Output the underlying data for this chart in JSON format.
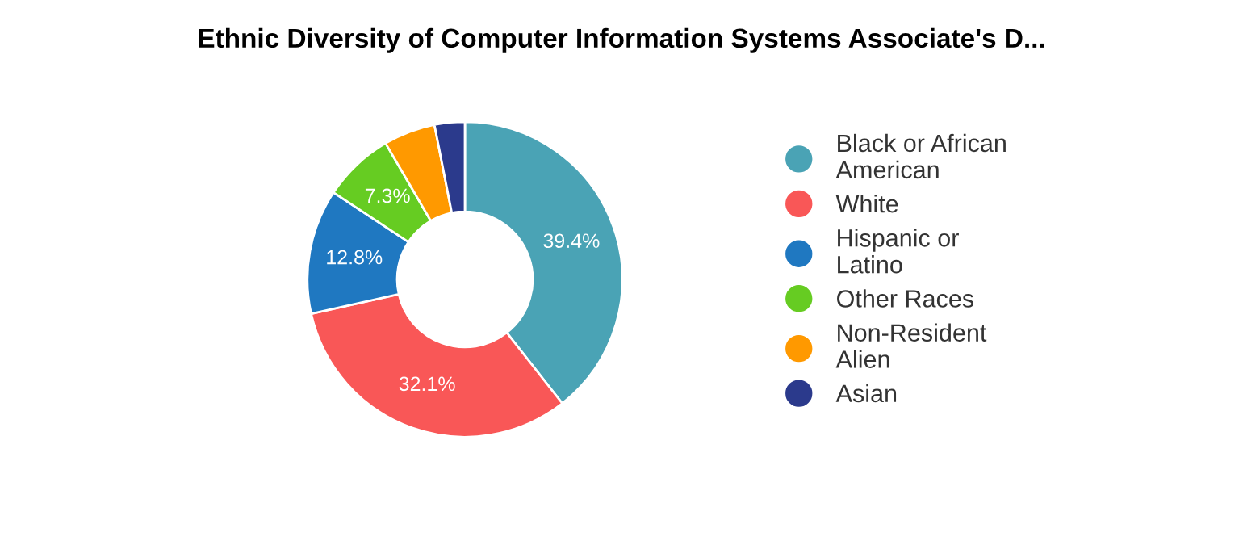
{
  "chart_data": {
    "type": "donut",
    "title": "Ethnic Diversity of Computer Information Systems Associate's D...",
    "categories": [
      "Black or African American",
      "White",
      "Hispanic or Latino",
      "Other Races",
      "Non-Resident Alien",
      "Asian"
    ],
    "values": [
      39.4,
      32.1,
      12.8,
      7.3,
      5.3,
      3.1
    ],
    "value_labels": [
      "39.4%",
      "32.1%",
      "12.8%",
      "7.3%",
      null,
      null
    ],
    "colors": [
      "#4aa3b5",
      "#f95757",
      "#1f78c1",
      "#66cc22",
      "#ff9900",
      "#2b3a8c"
    ],
    "legend": "right"
  }
}
